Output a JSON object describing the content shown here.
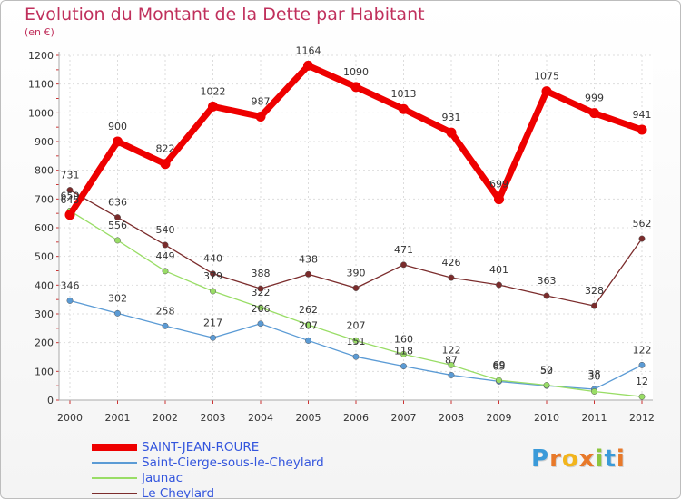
{
  "header": {
    "title": "Evolution du Montant de la Dette par Habitant",
    "subtitle": "(en €)"
  },
  "logo": {
    "text": "Proxiti",
    "letter_colors": [
      "#3a9ad9",
      "#e8792a",
      "#f2b51d",
      "#e8792a",
      "#8cc63f",
      "#3a9ad9",
      "#e8792a"
    ]
  },
  "chart_data": {
    "type": "line",
    "title": "Evolution du Montant de la Dette par Habitant",
    "subtitle": "(en €)",
    "x": [
      "2000",
      "2001",
      "2002",
      "2003",
      "2004",
      "2005",
      "2006",
      "2007",
      "2008",
      "2009",
      "2010",
      "2011",
      "2012"
    ],
    "y_ticks": [
      "0",
      "100",
      "200",
      "300",
      "400",
      "500",
      "600",
      "700",
      "800",
      "900",
      "1000",
      "1100",
      "1200"
    ],
    "ylim": [
      0,
      1200
    ],
    "grid": true,
    "legend_position": "bottom-left",
    "series": [
      {
        "name": "SAINT-JEAN-ROURE",
        "color": "#ee0000",
        "values": [
          645,
          900,
          822,
          1022,
          987,
          1164,
          1090,
          1013,
          931,
          699,
          1075,
          999,
          941
        ]
      },
      {
        "name": "Saint-Cierge-sous-le-Cheylard",
        "color": "#5b9bd5",
        "values": [
          346,
          302,
          258,
          217,
          266,
          207,
          151,
          118,
          87,
          65,
          50,
          38,
          122
        ]
      },
      {
        "name": "Jaunac",
        "color": "#99dd66",
        "values": [
          659,
          556,
          449,
          379,
          322,
          262,
          207,
          160,
          122,
          69,
          52,
          30,
          12
        ]
      },
      {
        "name": "Le Cheylard",
        "color": "#7b2c2c",
        "values": [
          731,
          636,
          540,
          440,
          388,
          438,
          390,
          471,
          426,
          401,
          363,
          328,
          562
        ]
      }
    ]
  }
}
